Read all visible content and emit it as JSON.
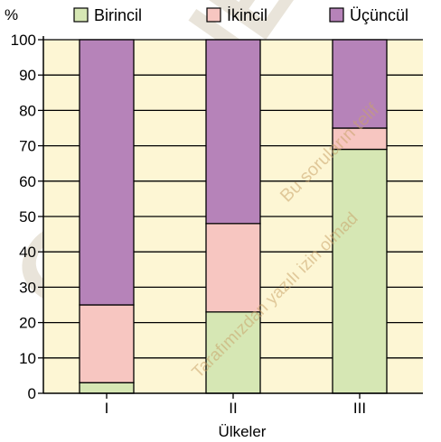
{
  "chart_data": {
    "type": "bar",
    "stacked": true,
    "y_unit_label": "%",
    "xlabel": "Ülkeler",
    "ylabel": "",
    "title": "",
    "categories": [
      "I",
      "II",
      "III"
    ],
    "series": [
      {
        "name": "Birincil",
        "color": "#d6e7b4",
        "values": [
          3,
          23,
          69
        ]
      },
      {
        "name": "İkincil",
        "color": "#f7c6c1",
        "values": [
          22,
          25,
          6
        ]
      },
      {
        "name": "Üçüncül",
        "color": "#b683b9",
        "values": [
          75,
          52,
          25
        ]
      }
    ],
    "ylim": [
      0,
      100
    ],
    "yticks": [
      0,
      10,
      20,
      30,
      40,
      50,
      60,
      70,
      80,
      90,
      100
    ],
    "grid": true,
    "plot_background": "#fdf6d4",
    "legend_position": "top"
  },
  "watermarks": [
    {
      "text": "Bu soruların telif"
    },
    {
      "text": "Tarafımızdan yazılı izin olmad"
    },
    {
      "text": "ONLINE"
    }
  ]
}
